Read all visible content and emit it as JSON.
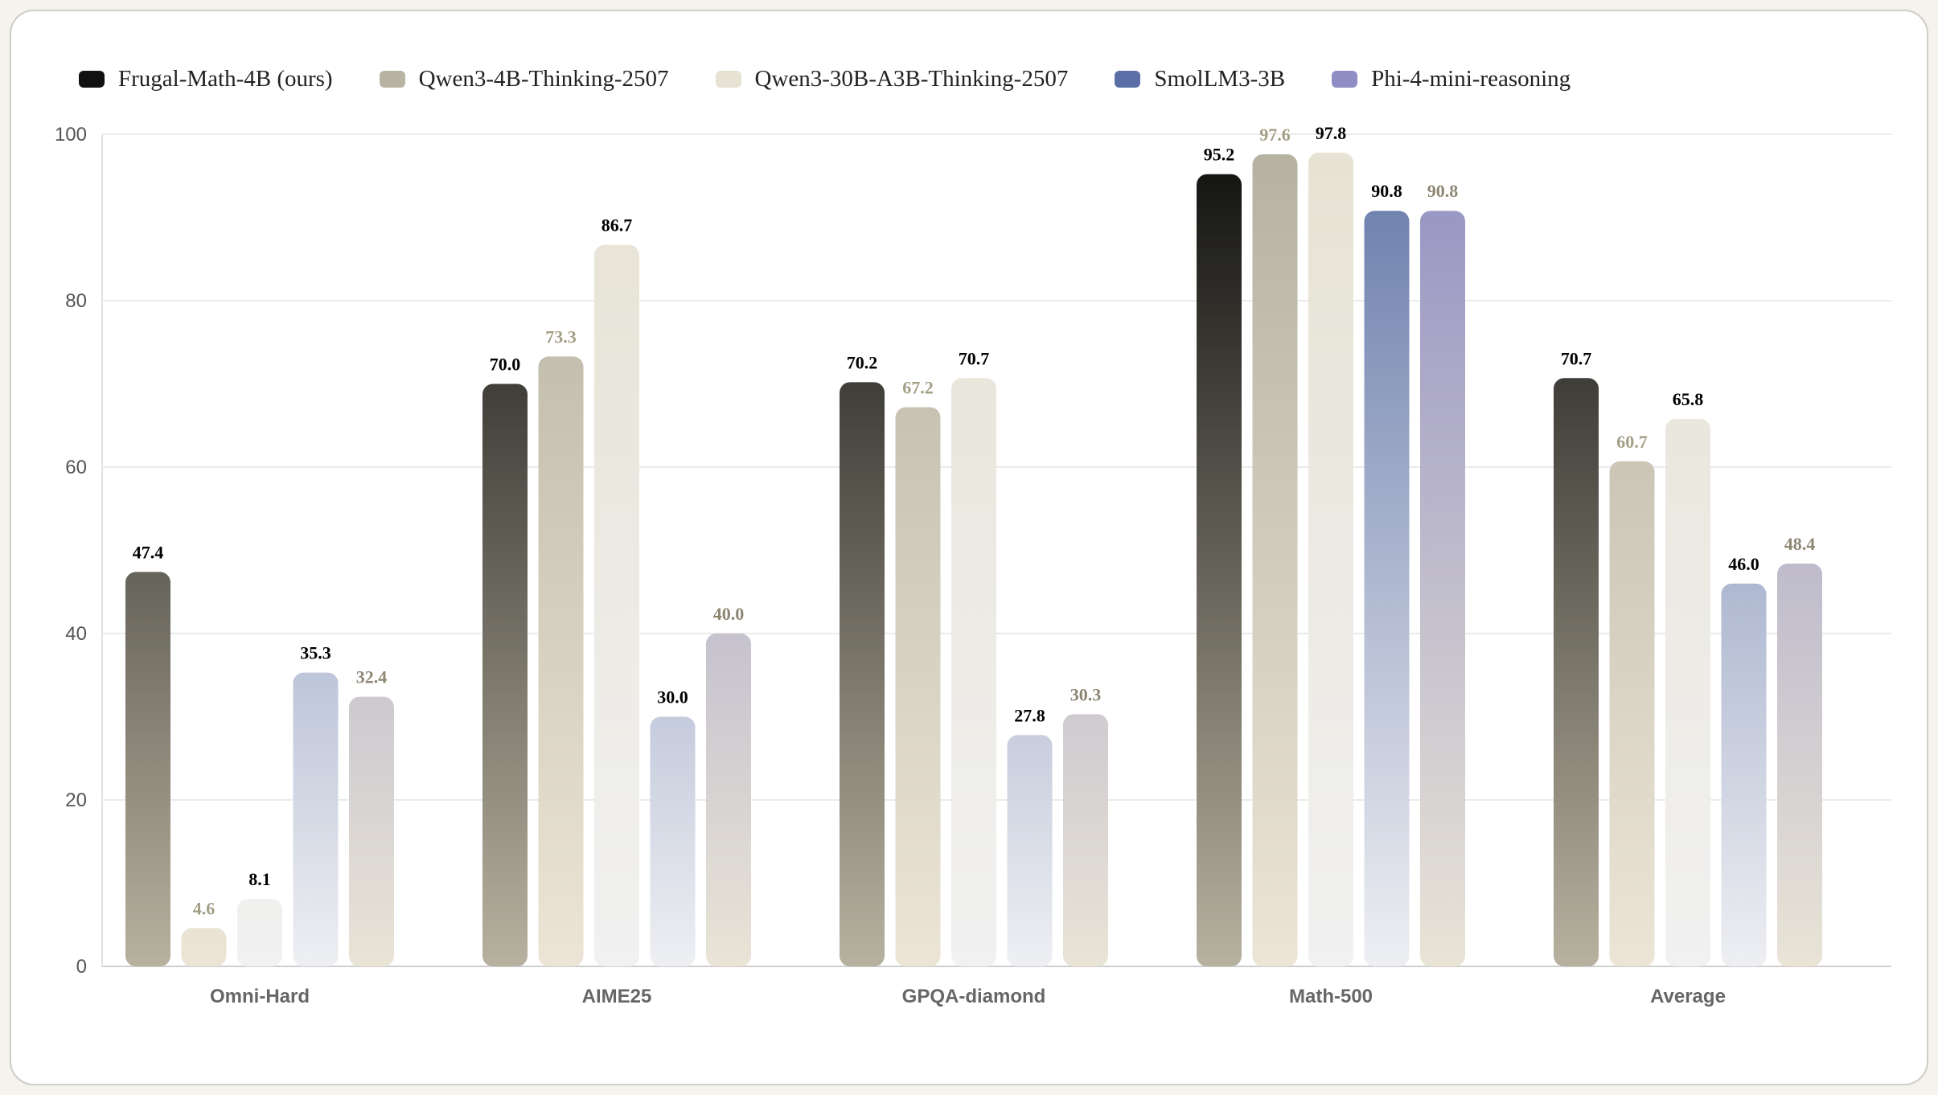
{
  "chart_data": {
    "type": "bar",
    "categories": [
      "Omni-Hard",
      "AIME25",
      "GPQA-diamond",
      "Math-500",
      "Average"
    ],
    "series": [
      {
        "name": "Frugal-Math-4B (ours)",
        "values": [
          47.4,
          70.0,
          70.2,
          95.2,
          70.7
        ],
        "color_top": "#0d0d0c",
        "color_bottom": "#b7b19f",
        "swatch": "#111111",
        "label_color": "#000000"
      },
      {
        "name": "Qwen3-4B-Thinking-2507",
        "values": [
          4.6,
          73.3,
          67.2,
          97.6,
          60.7
        ],
        "color_top": "#b5b1a0",
        "color_bottom": "#ece5d6",
        "swatch": "#b8b3a2",
        "label_color": "#a39e86"
      },
      {
        "name": "Qwen3-30B-A3B-Thinking-2507",
        "values": [
          8.1,
          86.7,
          70.7,
          97.8,
          65.8
        ],
        "color_top": "#e6e2d3",
        "color_bottom": "#f1f1f1",
        "swatch": "#e6e2d4",
        "label_color": "#000000"
      },
      {
        "name": "SmolLM3-3B",
        "values": [
          35.3,
          30.0,
          27.8,
          90.8,
          46.0
        ],
        "color_top": "#6478a8",
        "color_bottom": "#eeeff3",
        "swatch": "#5b6ea6",
        "label_color": "#000000"
      },
      {
        "name": "Phi-4-mini-reasoning",
        "values": [
          32.4,
          40.0,
          30.3,
          90.8,
          48.4
        ],
        "color_top": "#9290c2",
        "color_bottom": "#e9e4d6",
        "swatch": "#8f8ec4",
        "label_color": "#8c8672"
      }
    ],
    "title": "",
    "xlabel": "",
    "ylabel": "",
    "ylim": [
      0,
      100
    ],
    "yticks": [
      0,
      20,
      40,
      60,
      80,
      100
    ],
    "grid": true,
    "legend_position": "top-left"
  }
}
